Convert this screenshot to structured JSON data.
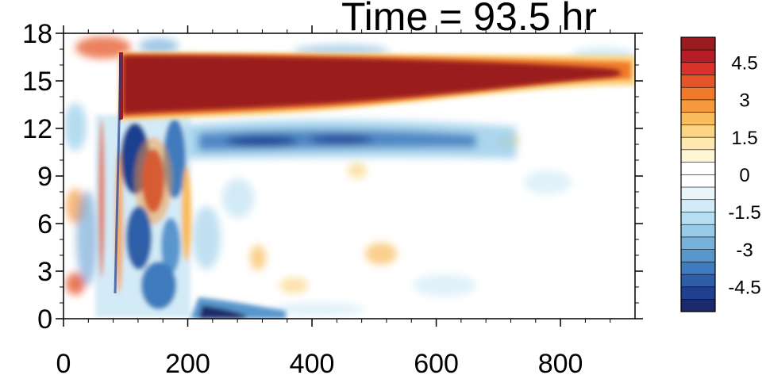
{
  "chart_data": {
    "type": "heatmap",
    "title": "Time = 93.5 hr",
    "xlabel": "",
    "ylabel": "",
    "xlim": [
      0,
      920
    ],
    "ylim": [
      0,
      18
    ],
    "x_ticks": [
      0,
      200,
      400,
      600,
      800
    ],
    "y_ticks": [
      0,
      3,
      6,
      9,
      12,
      15,
      18
    ],
    "colorbar": {
      "levels": [
        -5.5,
        -5,
        -4.5,
        -4,
        -3.5,
        -3,
        -2.5,
        -2,
        -1.5,
        -1,
        -0.5,
        0,
        0.5,
        1,
        1.5,
        2,
        2.5,
        3,
        3.5,
        4,
        4.5,
        5,
        5.5
      ],
      "labels": [
        "4.5",
        "3",
        "1.5",
        "0",
        "-1.5",
        "-3",
        "-4.5"
      ],
      "label_values": [
        4.5,
        3,
        1.5,
        0,
        -1.5,
        -3,
        -4.5
      ],
      "colors": [
        "#1b2a6b",
        "#1f3f8f",
        "#2f5ea8",
        "#3f7bbd",
        "#5896cc",
        "#77b2dd",
        "#96ccea",
        "#b6def1",
        "#d2ebf6",
        "#eaf5fa",
        "#ffffff",
        "#ffffff",
        "#fff6d6",
        "#fde9b0",
        "#fbd584",
        "#f9bb5c",
        "#f79a3e",
        "#f07a2c",
        "#e6552a",
        "#d8332a",
        "#b51e26",
        "#9a1c1f"
      ]
    },
    "features": [
      {
        "type": "band",
        "x": [
          90,
          900
        ],
        "y_top": [
          16.6,
          15.6
        ],
        "y_bottom": [
          12.6,
          14.9
        ],
        "value": 5.5
      },
      {
        "type": "band",
        "x": [
          230,
          650
        ],
        "y_top": [
          11.9,
          11.8
        ],
        "y_bottom": [
          10.8,
          10.9
        ],
        "value": -3.5
      },
      {
        "type": "blob",
        "x": 140,
        "y": 8.5,
        "value": 5
      },
      {
        "type": "blob",
        "x": 110,
        "y": 10,
        "value": -5
      },
      {
        "type": "blob",
        "x": 165,
        "y": 4,
        "value": -4
      },
      {
        "type": "blob",
        "x": 240,
        "y": 0.3,
        "value": -5
      }
    ]
  }
}
